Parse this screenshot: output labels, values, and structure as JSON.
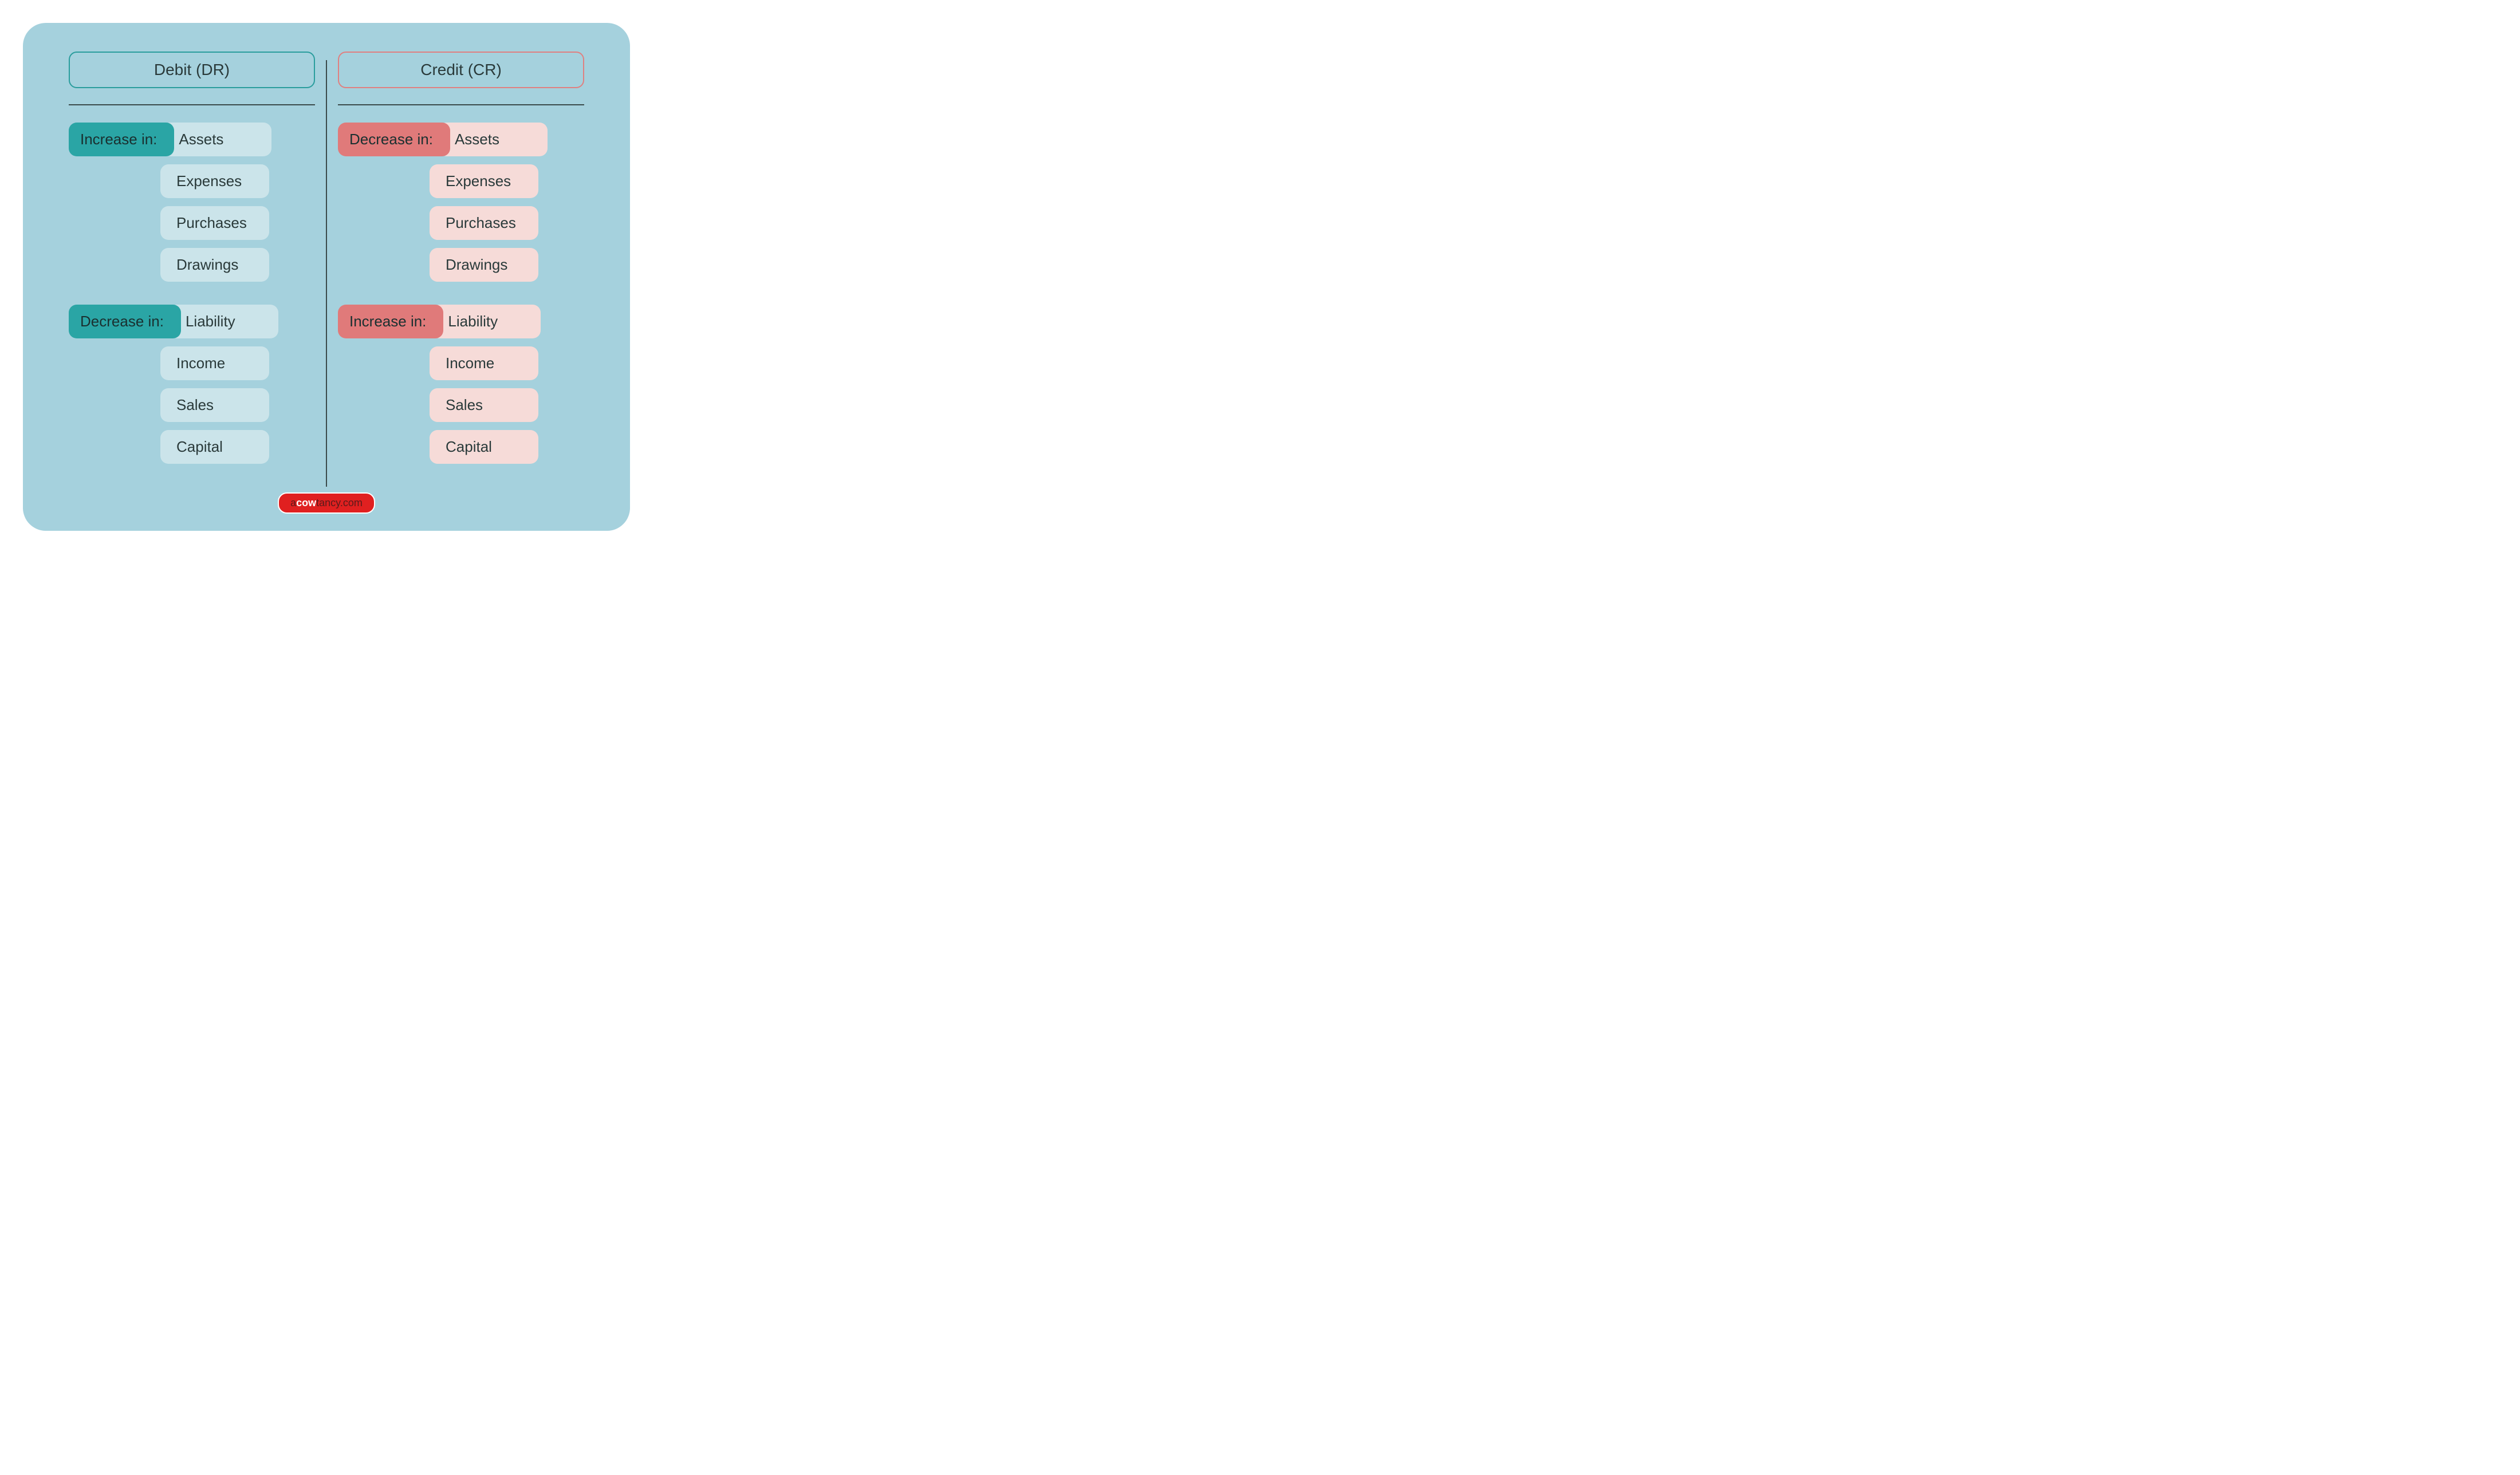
{
  "colors": {
    "card_bg": "#a5d1dd",
    "text": "#2a3a3a",
    "divider": "#3a4a4a",
    "debit_border": "#2a9d9d",
    "credit_border": "#e08080",
    "debit_tag_dark": "#2aa5a5",
    "debit_tag_light": "#cbe4ea",
    "credit_tag_dark": "#e07a7a",
    "credit_tag_light": "#f6dbd8",
    "footer_bg": "#e02020",
    "footer_text_dark": "#5a1a1a"
  },
  "debit": {
    "header": "Debit (DR)",
    "groups": [
      {
        "label": "Increase in:",
        "items": [
          "Assets",
          "Expenses",
          "Purchases",
          "Drawings"
        ]
      },
      {
        "label": "Decrease in:",
        "items": [
          "Liability",
          "Income",
          "Sales",
          "Capital"
        ]
      }
    ]
  },
  "credit": {
    "header": "Credit (CR)",
    "groups": [
      {
        "label": "Decrease in:",
        "items": [
          "Assets",
          "Expenses",
          "Purchases",
          "Drawings"
        ]
      },
      {
        "label": "Increase in:",
        "items": [
          "Liability",
          "Income",
          "Sales",
          "Capital"
        ]
      }
    ]
  },
  "footer": {
    "pre": "a",
    "bold": "cow",
    "post": "tancy.com"
  }
}
